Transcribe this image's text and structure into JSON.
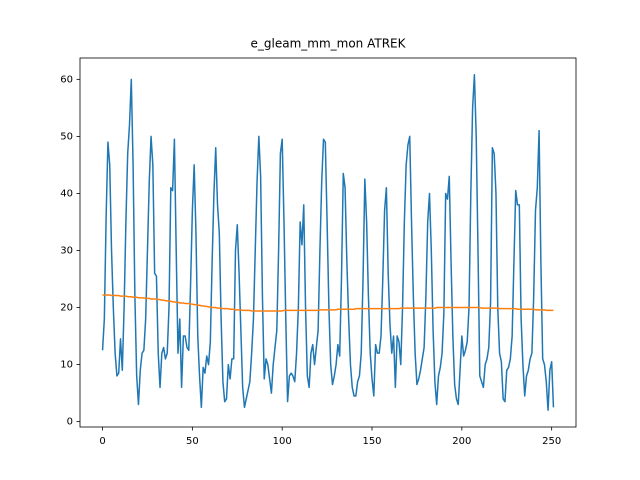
{
  "chart_data": {
    "type": "line",
    "title": "e_gleam_mm_mon ATREK",
    "x": [
      0,
      1,
      2,
      3,
      4,
      5,
      6,
      7,
      8,
      9,
      10,
      11,
      12,
      13,
      14,
      15,
      16,
      17,
      18,
      19,
      20,
      21,
      22,
      23,
      24,
      25,
      26,
      27,
      28,
      29,
      30,
      31,
      32,
      33,
      34,
      35,
      36,
      37,
      38,
      39,
      40,
      41,
      42,
      43,
      44,
      45,
      46,
      47,
      48,
      49,
      50,
      51,
      52,
      53,
      54,
      55,
      56,
      57,
      58,
      59,
      60,
      61,
      62,
      63,
      64,
      65,
      66,
      67,
      68,
      69,
      70,
      71,
      72,
      73,
      74,
      75,
      76,
      77,
      78,
      79,
      80,
      81,
      82,
      83,
      84,
      85,
      86,
      87,
      88,
      89,
      90,
      91,
      92,
      93,
      94,
      95,
      96,
      97,
      98,
      99,
      100,
      101,
      102,
      103,
      104,
      105,
      106,
      107,
      108,
      109,
      110,
      111,
      112,
      113,
      114,
      115,
      116,
      117,
      118,
      119,
      120,
      121,
      122,
      123,
      124,
      125,
      126,
      127,
      128,
      129,
      130,
      131,
      132,
      133,
      134,
      135,
      136,
      137,
      138,
      139,
      140,
      141,
      142,
      143,
      144,
      145,
      146,
      147,
      148,
      149,
      150,
      151,
      152,
      153,
      154,
      155,
      156,
      157,
      158,
      159,
      160,
      161,
      162,
      163,
      164,
      165,
      166,
      167,
      168,
      169,
      170,
      171,
      172,
      173,
      174,
      175,
      176,
      177,
      178,
      179,
      180,
      181,
      182,
      183,
      184,
      185,
      186,
      187,
      188,
      189,
      190,
      191,
      192,
      193,
      194,
      195,
      196,
      197,
      198,
      199,
      200,
      201,
      202,
      203,
      204,
      205,
      206,
      207,
      208,
      209,
      210,
      211,
      212,
      213,
      214,
      215,
      216,
      217,
      218,
      219,
      220,
      221,
      222,
      223,
      224,
      225,
      226,
      227,
      228,
      229,
      230,
      231,
      232,
      233,
      234,
      235,
      236,
      237,
      238,
      239,
      240,
      241,
      242,
      243,
      244,
      245,
      246,
      247,
      248,
      249,
      250,
      251
    ],
    "series": [
      {
        "color": "#1f77b4",
        "values": [
          12.5,
          18,
          36,
          49,
          45,
          30,
          20,
          12,
          8,
          8.5,
          14.5,
          9,
          20,
          35,
          47,
          52,
          60,
          45,
          22,
          8,
          3,
          9,
          12,
          12.5,
          18,
          30,
          42,
          50,
          45,
          26,
          25.5,
          12,
          6,
          12,
          13,
          11,
          12,
          20,
          41,
          40.5,
          49.5,
          30,
          12,
          18,
          6,
          15,
          15,
          13,
          12.5,
          24,
          37,
          45,
          33,
          15,
          8,
          2.5,
          9.5,
          8.5,
          11.5,
          10,
          14,
          28,
          40,
          48,
          38,
          33,
          18,
          7,
          3.5,
          4,
          10,
          7.5,
          11,
          11,
          30,
          34.5,
          26,
          16,
          6,
          2.5,
          4,
          5.5,
          7,
          12,
          18,
          30,
          42,
          50,
          43,
          22,
          7.5,
          11,
          10,
          7.5,
          5,
          10,
          13,
          16,
          30,
          47,
          49.5,
          35,
          18,
          3.5,
          8,
          8.5,
          8,
          7,
          12,
          20,
          35,
          31,
          38,
          20,
          8,
          6,
          12,
          13.5,
          10,
          13,
          16,
          30,
          42,
          49.5,
          49,
          35,
          20,
          10,
          6.5,
          8,
          10,
          13.5,
          11.5,
          25,
          43.5,
          41,
          28,
          18,
          10,
          6,
          4.5,
          4.5,
          7,
          8,
          12,
          25,
          42.5,
          35,
          22,
          12,
          7.5,
          4.5,
          13.5,
          12,
          12,
          15,
          25,
          37,
          41,
          26,
          17,
          12,
          15,
          6,
          15,
          14,
          10,
          20,
          35,
          45,
          48.5,
          50,
          35,
          22,
          12,
          6.5,
          7.5,
          9,
          11,
          13,
          22,
          35,
          40,
          30,
          16,
          7,
          3,
          8,
          9.5,
          12,
          19,
          40,
          39,
          43,
          28,
          15,
          6.5,
          4,
          3,
          9,
          15,
          11.5,
          12.5,
          14,
          20,
          40,
          55,
          60.8,
          50,
          30,
          8,
          7,
          6,
          10,
          11,
          13,
          21,
          48,
          47,
          40,
          20,
          12,
          10.5,
          4,
          3.5,
          9,
          9.5,
          11,
          15,
          28,
          40.5,
          38,
          38,
          18,
          10,
          4.5,
          8,
          9,
          11,
          12,
          22,
          37,
          41,
          51,
          28,
          11,
          10,
          7,
          2,
          9,
          10.5,
          2.5
        ]
      },
      {
        "color": "#ff7f0e",
        "values": [
          22.2,
          22.2,
          22.2,
          22.2,
          22.2,
          22.1,
          22.1,
          22.1,
          22.1,
          22.1,
          22.0,
          22.0,
          22.0,
          22.0,
          21.9,
          21.9,
          21.9,
          21.8,
          21.8,
          21.8,
          21.7,
          21.7,
          21.7,
          21.7,
          21.6,
          21.6,
          21.6,
          21.5,
          21.5,
          21.5,
          21.5,
          21.4,
          21.4,
          21.3,
          21.3,
          21.2,
          21.2,
          21.1,
          21.1,
          21.0,
          21.0,
          20.9,
          20.9,
          20.8,
          20.8,
          20.8,
          20.7,
          20.7,
          20.7,
          20.6,
          20.6,
          20.5,
          20.5,
          20.4,
          20.4,
          20.3,
          20.3,
          20.2,
          20.2,
          20.1,
          20.1,
          20.0,
          20.0,
          20.0,
          19.9,
          19.9,
          19.9,
          19.8,
          19.8,
          19.8,
          19.8,
          19.7,
          19.7,
          19.7,
          19.6,
          19.6,
          19.6,
          19.6,
          19.5,
          19.5,
          19.5,
          19.5,
          19.5,
          19.4,
          19.4,
          19.4,
          19.4,
          19.4,
          19.4,
          19.4,
          19.4,
          19.4,
          19.4,
          19.4,
          19.4,
          19.4,
          19.4,
          19.4,
          19.4,
          19.4,
          19.4,
          19.5,
          19.5,
          19.5,
          19.5,
          19.5,
          19.5,
          19.5,
          19.5,
          19.5,
          19.5,
          19.5,
          19.5,
          19.5,
          19.5,
          19.5,
          19.5,
          19.5,
          19.5,
          19.5,
          19.5,
          19.6,
          19.6,
          19.6,
          19.6,
          19.6,
          19.6,
          19.6,
          19.6,
          19.6,
          19.6,
          19.7,
          19.7,
          19.7,
          19.7,
          19.7,
          19.7,
          19.7,
          19.7,
          19.7,
          19.7,
          19.8,
          19.8,
          19.8,
          19.8,
          19.8,
          19.8,
          19.8,
          19.8,
          19.8,
          19.8,
          19.8,
          19.8,
          19.8,
          19.8,
          19.8,
          19.8,
          19.8,
          19.8,
          19.8,
          19.8,
          19.8,
          19.8,
          19.8,
          19.8,
          19.8,
          19.9,
          19.9,
          19.9,
          19.9,
          19.9,
          19.9,
          19.9,
          19.9,
          19.9,
          19.9,
          19.9,
          19.9,
          19.9,
          19.9,
          19.9,
          19.9,
          19.9,
          19.9,
          19.9,
          19.9,
          20.0,
          20.0,
          20.0,
          20.0,
          20.0,
          20.0,
          20.0,
          20.0,
          20.0,
          20.0,
          20.0,
          20.0,
          20.0,
          20.0,
          20.0,
          20.0,
          20.0,
          20.0,
          20.0,
          20.0,
          20.0,
          20.0,
          20.0,
          20.0,
          20.0,
          19.9,
          19.9,
          19.9,
          19.9,
          19.9,
          19.9,
          19.9,
          19.9,
          19.9,
          19.9,
          19.8,
          19.8,
          19.8,
          19.8,
          19.8,
          19.8,
          19.8,
          19.8,
          19.8,
          19.8,
          19.7,
          19.7,
          19.7,
          19.7,
          19.7,
          19.7,
          19.7,
          19.7,
          19.7,
          19.7,
          19.6,
          19.6,
          19.6,
          19.6,
          19.6,
          19.6,
          19.5,
          19.5,
          19.5,
          19.5,
          19.5
        ]
      }
    ],
    "xlim": [
      -12.55,
      263.55
    ],
    "xticks": [
      0,
      50,
      100,
      150,
      200,
      250
    ],
    "ylim": [
      -0.94,
      63.74
    ],
    "yticks": [
      0,
      10,
      20,
      30,
      40,
      50,
      60
    ]
  }
}
